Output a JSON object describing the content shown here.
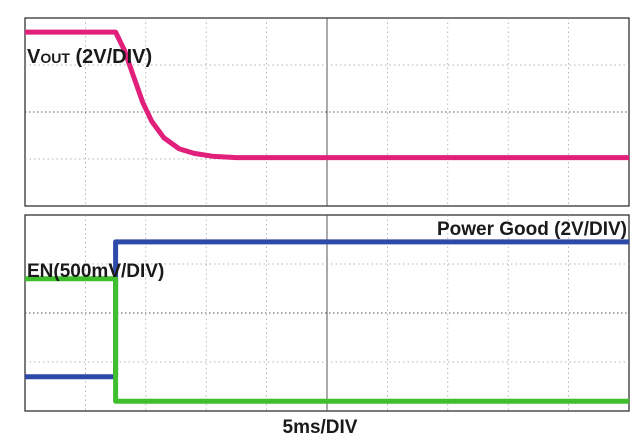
{
  "timebase_label": "5ms/DIV",
  "chart_data": [
    {
      "type": "line",
      "panel": "top",
      "grid": true,
      "x_divisions": 10,
      "y_divisions": 4,
      "xlabel": "",
      "ylabel": "",
      "series": [
        {
          "name": "VOUT (2V/DIV)",
          "name_main": "V",
          "name_sub": "OUT",
          "name_suffix": " (2V/DIV)",
          "color": "#e0207a",
          "x": [
            0,
            1.0,
            1.5,
            1.65,
            1.8,
            1.95,
            2.1,
            2.3,
            2.55,
            2.8,
            3.1,
            3.5,
            10
          ],
          "y": [
            3.7,
            3.7,
            3.7,
            3.3,
            2.75,
            2.2,
            1.8,
            1.45,
            1.22,
            1.12,
            1.06,
            1.03,
            1.03
          ]
        }
      ]
    },
    {
      "type": "line",
      "panel": "bottom",
      "grid": true,
      "x_divisions": 10,
      "y_divisions": 4,
      "xlabel": "5ms/DIV",
      "ylabel": "",
      "series": [
        {
          "name": "Power Good (2V/DIV)",
          "color": "#2e4aa8",
          "x": [
            0,
            1.5,
            1.5,
            10
          ],
          "y": [
            0.7,
            0.7,
            3.45,
            3.45
          ]
        },
        {
          "name": "EN(500mV/DIV)",
          "color": "#3fbe2e",
          "x": [
            0,
            1.5,
            1.5,
            10
          ],
          "y": [
            2.7,
            2.7,
            0.2,
            0.2
          ]
        }
      ]
    }
  ]
}
